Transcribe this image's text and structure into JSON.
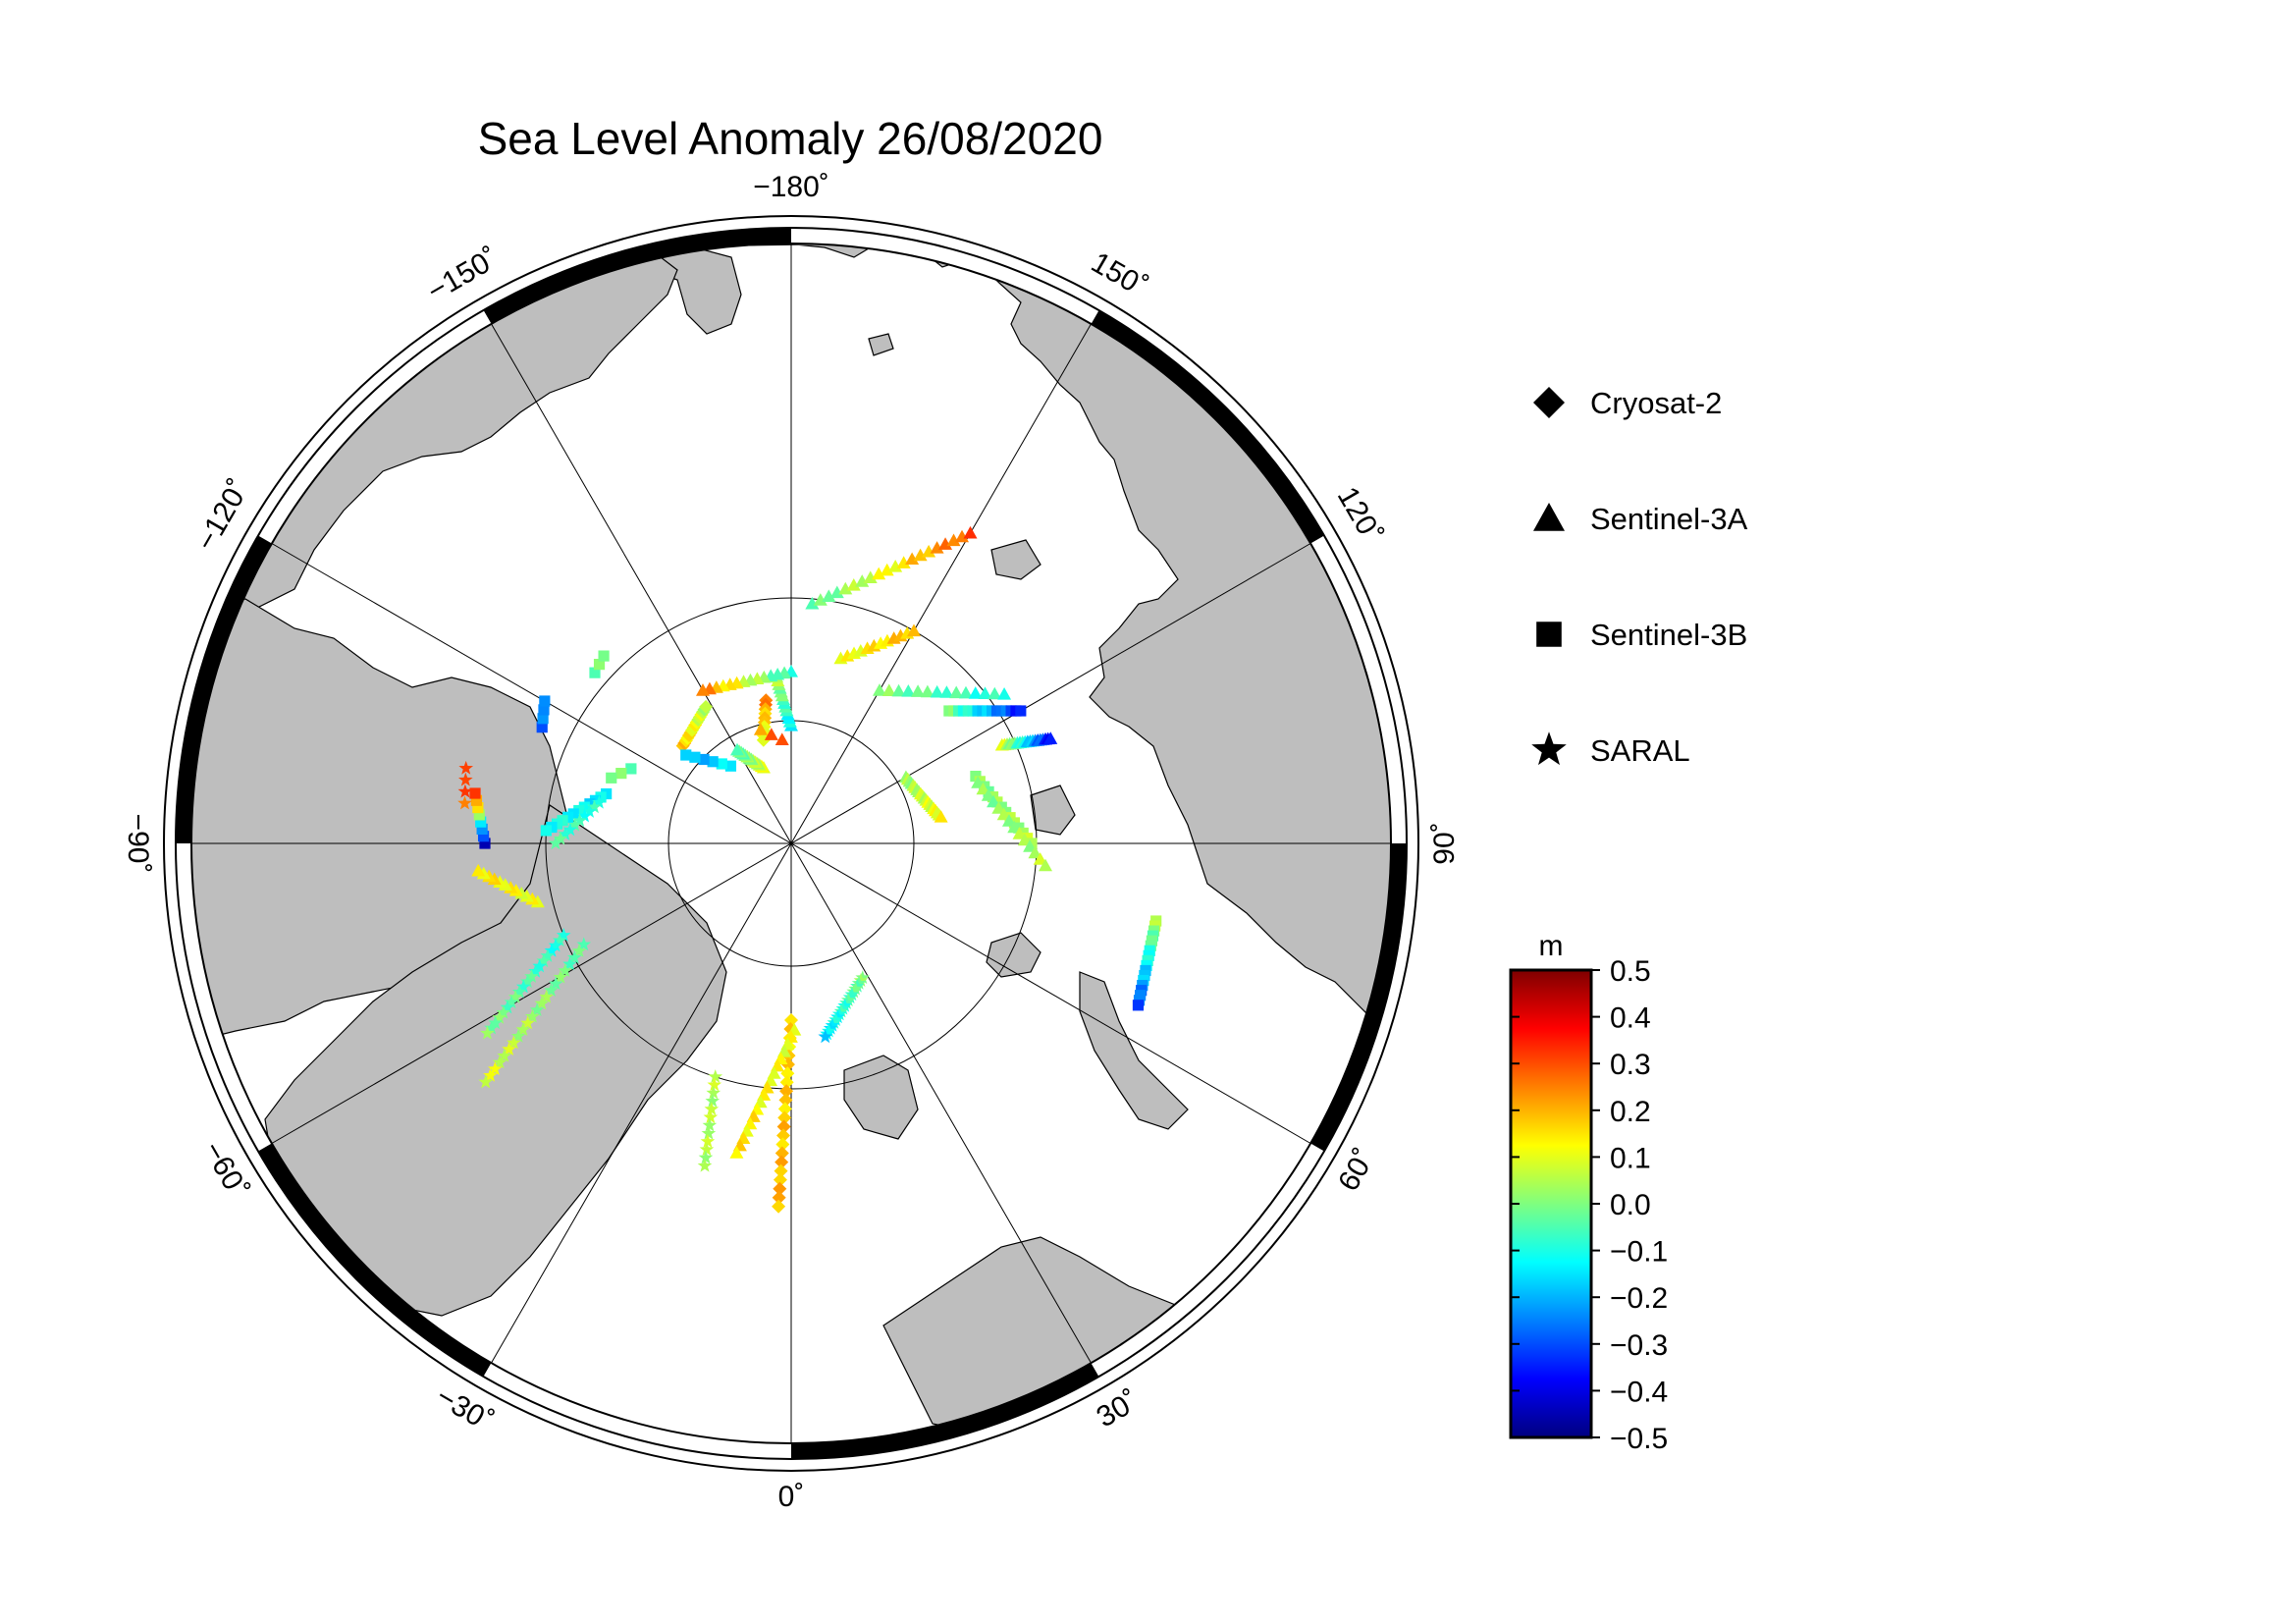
{
  "map": {
    "title": "Sea Level Anomaly 26/08/2020",
    "projection": "north-polar-stereographic",
    "ocean_color": "#ffffff",
    "land_color": "#bebebe",
    "longitude_labels": [
      {
        "lon": -180,
        "text": "−180˚"
      },
      {
        "lon": 150,
        "text": "150˚"
      },
      {
        "lon": 120,
        "text": "120˚"
      },
      {
        "lon": 90,
        "text": "90˚"
      },
      {
        "lon": 60,
        "text": "60˚"
      },
      {
        "lon": 30,
        "text": "30˚"
      },
      {
        "lon": 0,
        "text": "0˚"
      },
      {
        "lon": -30,
        "text": "−30˚"
      },
      {
        "lon": -60,
        "text": "−60˚"
      },
      {
        "lon": -90,
        "text": "−90˚"
      },
      {
        "lon": -120,
        "text": "−120˚"
      },
      {
        "lon": -150,
        "text": "−150˚"
      }
    ]
  },
  "legend": {
    "items": [
      {
        "symbol": "diamond",
        "label": "Cryosat-2",
        "icon": "diamond-icon"
      },
      {
        "symbol": "triangle",
        "label": "Sentinel-3A",
        "icon": "triangle-icon"
      },
      {
        "symbol": "square",
        "label": "Sentinel-3B",
        "icon": "square-icon"
      },
      {
        "symbol": "star",
        "label": "SARAL",
        "icon": "star-icon"
      }
    ]
  },
  "colorbar": {
    "unit": "m",
    "min": -0.5,
    "max": 0.5,
    "ticks": [
      "0.5",
      "0.4",
      "0.3",
      "0.2",
      "0.1",
      "0.0",
      "−0.1",
      "−0.2",
      "−0.3",
      "−0.4",
      "−0.5"
    ],
    "colormap": [
      "#00007f",
      "#0000ff",
      "#0080ff",
      "#00ffff",
      "#7fff7f",
      "#ffff00",
      "#ff8000",
      "#ff0000",
      "#7f0000"
    ]
  },
  "tracks": [
    {
      "mission": "Cryosat-2",
      "symbol": "diamond",
      "start": [
        148.5,
        -132
      ],
      "end": [
        164,
        -148
      ],
      "v0": 0.18,
      "v1": 0.05,
      "n": 16
    },
    {
      "mission": "Cryosat-2",
      "symbol": "diamond",
      "start": [
        148,
        -170
      ],
      "end": [
        109,
        -165
      ],
      "v0": 0.25,
      "v1": 0.08,
      "n": 10
    },
    {
      "mission": "Sentinel-3A",
      "symbol": "triangle",
      "start": [
        106,
        -175
      ],
      "end": [
        120,
        -165
      ],
      "v0": 0.3,
      "v1": 0.22,
      "n": 3
    },
    {
      "mission": "Sentinel-3A",
      "symbol": "triangle",
      "start": [
        82,
        -160
      ],
      "end": [
        110,
        -150
      ],
      "v0": 0.1,
      "v1": -0.05,
      "n": 14
    },
    {
      "mission": "Sentinel-3A",
      "symbol": "triangle",
      "start": [
        120,
        -180
      ],
      "end": [
        170,
        -175
      ],
      "v0": -0.15,
      "v1": 0.05,
      "n": 14
    },
    {
      "mission": "Sentinel-3A",
      "symbol": "triangle",
      "start": [
        175,
        -180
      ],
      "end": [
        180,
        -150
      ],
      "v0": -0.1,
      "v1": 0.25,
      "n": 14
    },
    {
      "mission": "Sentinel-3A",
      "symbol": "triangle",
      "start": [
        245,
        175
      ],
      "end": [
        365,
        150
      ],
      "v0": -0.05,
      "v1": 0.3,
      "n": 20
    },
    {
      "mission": "Sentinel-3A",
      "symbol": "triangle",
      "start": [
        195,
        165
      ],
      "end": [
        250,
        150
      ],
      "v0": 0.1,
      "v1": 0.2,
      "n": 12
    },
    {
      "mission": "Sentinel-3A",
      "symbol": "triangle",
      "start": [
        180,
        150
      ],
      "end": [
        265,
        125
      ],
      "v0": 0.0,
      "v1": -0.1,
      "n": 14
    },
    {
      "mission": "Sentinel-3A",
      "symbol": "triangle",
      "start": [
        135,
        120
      ],
      "end": [
        155,
        100
      ],
      "v0": 0.02,
      "v1": 0.12,
      "n": 20
    },
    {
      "mission": "Sentinel-3A",
      "symbol": "triangle",
      "start": [
        237,
        115
      ],
      "end": [
        285,
        112
      ],
      "v0": 0.1,
      "v1": -0.38,
      "n": 20
    },
    {
      "mission": "Sentinel-3B",
      "symbol": "square",
      "start": [
        210,
        130
      ],
      "end": [
        270,
        120
      ],
      "v0": 0.0,
      "v1": -0.35,
      "n": 16
    },
    {
      "mission": "Sentinel-3B",
      "symbol": "square",
      "start": [
        200,
        110
      ],
      "end": [
        245,
        90
      ],
      "v0": 0.0,
      "v1": 0.05,
      "n": 14
    },
    {
      "mission": "Sentinel-3A",
      "symbol": "triangle",
      "start": [
        200,
        108
      ],
      "end": [
        260,
        85
      ],
      "v0": 0.0,
      "v1": 0.05,
      "n": 14
    },
    {
      "mission": "Sentinel-3B",
      "symbol": "square",
      "start": [
        380,
        78
      ],
      "end": [
        390,
        65
      ],
      "v0": 0.05,
      "v1": -0.3,
      "n": 18
    },
    {
      "mission": "SARAL",
      "symbol": "star",
      "start": [
        155,
        28
      ],
      "end": [
        200,
        10
      ],
      "v0": 0.0,
      "v1": -0.15,
      "n": 22
    },
    {
      "mission": "Cryosat-2",
      "symbol": "diamond",
      "start": [
        180,
        0
      ],
      "end": [
        370,
        -2
      ],
      "v0": 0.15,
      "v1": 0.2,
      "n": 22
    },
    {
      "mission": "Sentinel-3A",
      "symbol": "triangle",
      "start": [
        190,
        1
      ],
      "end": [
        320,
        -10
      ],
      "v0": 0.1,
      "v1": 0.15,
      "n": 18
    },
    {
      "mission": "SARAL",
      "symbol": "star",
      "start": [
        250,
        -18
      ],
      "end": [
        340,
        -15
      ],
      "v0": 0.05,
      "v1": 0.05,
      "n": 12
    },
    {
      "mission": "SARAL",
      "symbol": "star",
      "start": [
        235,
        -64
      ],
      "end": [
        395,
        -52
      ],
      "v0": -0.05,
      "v1": 0.1,
      "n": 22
    },
    {
      "mission": "SARAL",
      "symbol": "star",
      "start": [
        250,
        -68
      ],
      "end": [
        365,
        -58
      ],
      "v0": -0.1,
      "v1": 0.0,
      "n": 20
    },
    {
      "mission": "Sentinel-3A",
      "symbol": "triangle",
      "start": [
        265,
        -77
      ],
      "end": [
        320,
        -85
      ],
      "v0": 0.1,
      "v1": 0.15,
      "n": 12
    },
    {
      "mission": "Sentinel-3B",
      "symbol": "square",
      "start": [
        312,
        -90
      ],
      "end": [
        326,
        -99
      ],
      "v0": -0.45,
      "v1": 0.35,
      "n": 8
    },
    {
      "mission": "SARAL",
      "symbol": "star",
      "start": [
        335,
        -97
      ],
      "end": [
        340,
        -103
      ],
      "v0": 0.25,
      "v1": 0.35,
      "n": 4
    },
    {
      "mission": "Sentinel-3B",
      "symbol": "square",
      "start": [
        195,
        -105
      ],
      "end": [
        250,
        -93
      ],
      "v0": -0.15,
      "v1": -0.1,
      "n": 12
    },
    {
      "mission": "SARAL",
      "symbol": "star",
      "start": [
        200,
        -102
      ],
      "end": [
        240,
        -90
      ],
      "v0": -0.1,
      "v1": -0.05,
      "n": 10
    },
    {
      "mission": "Sentinel-3B",
      "symbol": "square",
      "start": [
        280,
        -115
      ],
      "end": [
        290,
        -120
      ],
      "v0": -0.3,
      "v1": -0.2,
      "n": 4
    },
    {
      "mission": "Sentinel-3B",
      "symbol": "square",
      "start": [
        265,
        -131
      ],
      "end": [
        270,
        -135
      ],
      "v0": -0.05,
      "v1": 0.0,
      "n": 3
    },
    {
      "mission": "Sentinel-3B",
      "symbol": "square",
      "start": [
        100,
        -142
      ],
      "end": [
        140,
        -130
      ],
      "v0": -0.15,
      "v1": -0.2,
      "n": 6
    },
    {
      "mission": "Sentinel-3B",
      "symbol": "square",
      "start": [
        180,
        -115
      ],
      "end": [
        195,
        -110
      ],
      "v0": -0.05,
      "v1": 0.0,
      "n": 3
    }
  ]
}
